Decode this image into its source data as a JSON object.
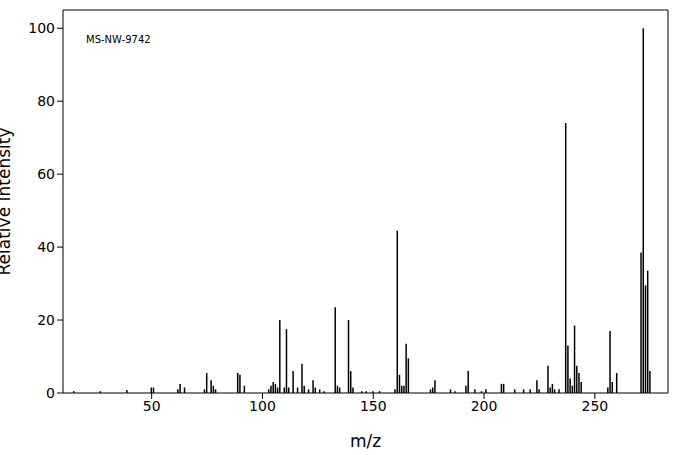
{
  "chart_data": {
    "type": "bar",
    "annotation": "MS-NW-9742",
    "x_label": "m/z",
    "y_label": "Relative Intensity",
    "x": [
      15,
      27,
      39,
      50,
      51,
      62,
      63,
      65,
      74,
      75,
      77,
      78,
      79,
      89,
      90,
      92,
      103,
      104,
      105,
      106,
      107,
      108,
      110,
      111,
      112,
      114,
      116,
      118,
      119,
      121,
      123,
      124,
      126,
      128,
      133,
      134,
      135,
      139,
      140,
      141,
      145,
      147,
      150,
      153,
      160,
      161,
      162,
      163,
      164,
      165,
      166,
      176,
      177,
      178,
      185,
      187,
      192,
      193,
      196,
      199,
      201,
      208,
      209,
      214,
      218,
      221,
      224,
      225,
      229,
      230,
      231,
      232,
      234,
      237,
      238,
      239,
      240,
      241,
      242,
      243,
      244,
      256,
      257,
      258,
      260,
      271,
      272,
      273,
      274,
      275
    ],
    "values": [
      0.5,
      0.5,
      0.8,
      1.5,
      1.5,
      1,
      2.5,
      1.5,
      1,
      5.5,
      3.5,
      2,
      1,
      5.5,
      5,
      2,
      1,
      2,
      3,
      2.5,
      1.5,
      20,
      1.5,
      17.5,
      1.5,
      6,
      1.5,
      8,
      2,
      1,
      3.5,
      1.5,
      1,
      0.5,
      23.5,
      2,
      1.5,
      20,
      6,
      1.5,
      0.5,
      0.5,
      0.5,
      0.5,
      1,
      44.5,
      5,
      2,
      2,
      13.5,
      9.5,
      1,
      1.5,
      3.5,
      1,
      0.5,
      2,
      6,
      1,
      0.5,
      1,
      2.5,
      2.5,
      1,
      1,
      1,
      3.5,
      1,
      7.5,
      1.5,
      2.5,
      1,
      1,
      74,
      13,
      4,
      2,
      18.5,
      7.5,
      5.5,
      3,
      1.5,
      17,
      3,
      5.5,
      38.5,
      100,
      29.5,
      33.5,
      6
    ],
    "color": "#000000",
    "xlim": [
      10,
      283
    ],
    "ylim": [
      0,
      105
    ],
    "xticks": [
      50,
      100,
      150,
      200,
      250
    ],
    "yticks": [
      0,
      20,
      40,
      60,
      80,
      100
    ],
    "grid": false
  }
}
